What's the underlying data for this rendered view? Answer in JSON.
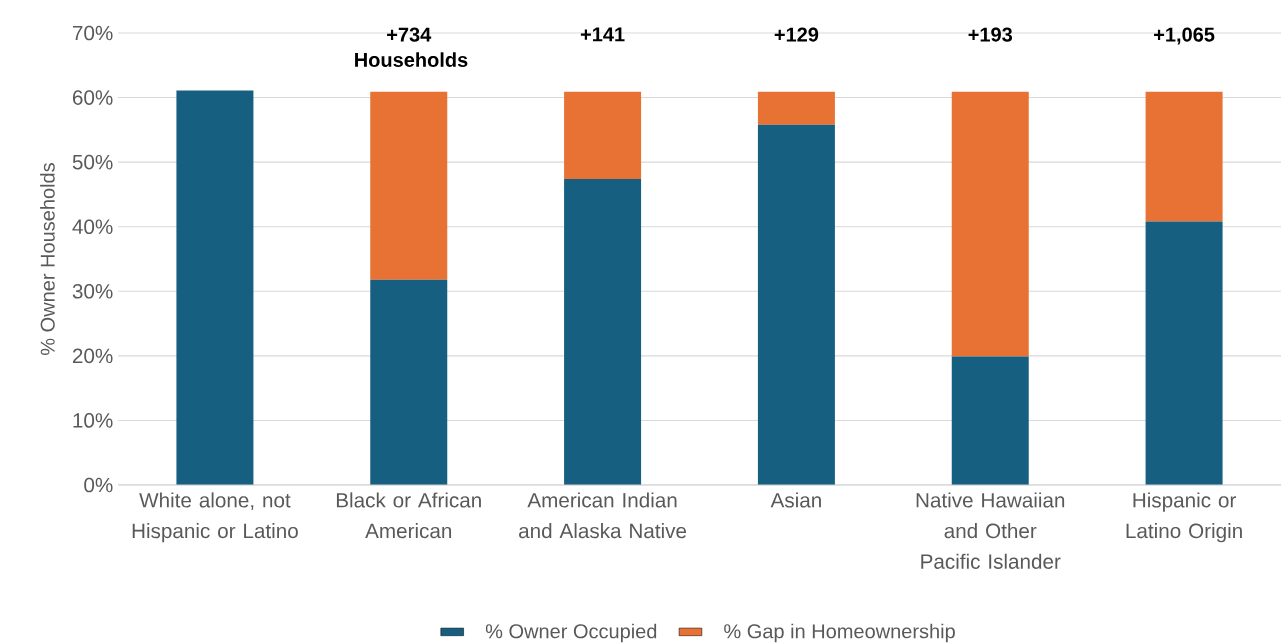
{
  "chart_data": {
    "type": "bar",
    "stacked": true,
    "ylabel": "% Owner Households",
    "categories": [
      "White alone, not Hispanic or Latino",
      "Black or African American",
      "American Indian and Alaska Native",
      "Asian",
      "Native Hawaiian and Other Pacific Islander",
      "Hispanic or Latino Origin"
    ],
    "series": [
      {
        "name": "% Owner Occupied",
        "color": "#175f81",
        "values": [
          61.1,
          31.8,
          47.4,
          55.8,
          19.9,
          40.8
        ]
      },
      {
        "name": "% Gap in Homeownership",
        "color": "#e87233",
        "values": [
          0,
          29.1,
          13.5,
          5.1,
          41.0,
          20.1
        ]
      }
    ],
    "annotations": [
      {
        "text": "+734 Households",
        "x": "Black or African American",
        "y": 60.9
      },
      {
        "text": "+141",
        "x": "American Indian and Alaska Native",
        "y": 60.9
      },
      {
        "text": "+129",
        "x": "Asian",
        "y": 60.9
      },
      {
        "text": "+193",
        "x": "Native Hawaiian and Other Pacific Islander",
        "y": 60.9
      },
      {
        "text": "+1,065",
        "x": "Hispanic or Latino Origin",
        "y": 60.9
      }
    ],
    "ylim": [
      0,
      70
    ],
    "yticks": [
      {
        "value": 0,
        "label": "0%"
      },
      {
        "value": 10,
        "label": "10%"
      },
      {
        "value": 20,
        "label": "20%"
      },
      {
        "value": 30,
        "label": "30%"
      },
      {
        "value": 40,
        "label": "40%"
      },
      {
        "value": 50,
        "label": "50%"
      },
      {
        "value": 60,
        "label": "60%"
      },
      {
        "value": 70,
        "label": "70%"
      }
    ],
    "grid": "y",
    "legend": "bottom"
  }
}
